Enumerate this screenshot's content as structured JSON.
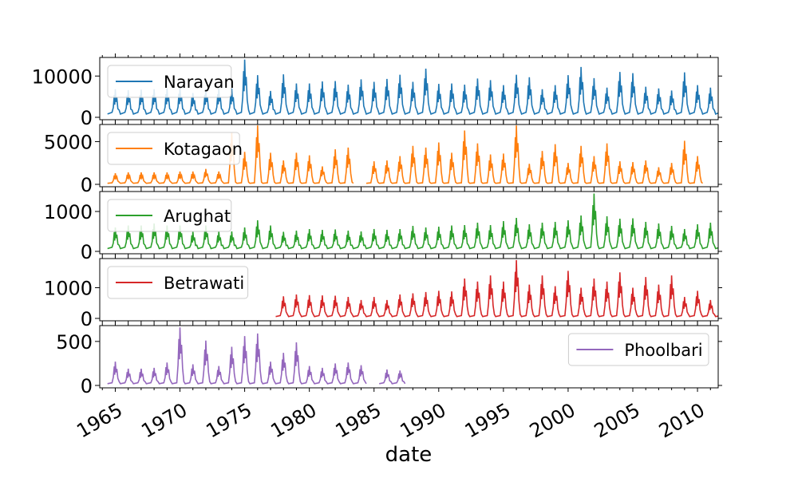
{
  "chart_data": [
    {
      "type": "line",
      "series": [
        {
          "name": "Narayan",
          "color": "#1f77b4",
          "baseline": 800,
          "peaks": [
            6800,
            6600,
            6700,
            6800,
            7000,
            7100,
            5900,
            6800,
            7000,
            7000,
            14000,
            10200,
            6400,
            10400,
            8200,
            8200,
            8700,
            8800,
            7900,
            9200,
            8600,
            9300,
            10300,
            8600,
            11800,
            8100,
            8200,
            7900,
            9400,
            9000,
            7800,
            10300,
            9700,
            6800,
            7800,
            10200,
            12200,
            9500,
            7200,
            11000,
            10700,
            7400,
            7000,
            6500,
            10900,
            7800,
            7200,
            7800
          ]
        }
      ],
      "yticks": [
        0,
        10000
      ],
      "ylim": [
        0,
        14500
      ],
      "legend_position": "upper left"
    },
    {
      "type": "line",
      "series": [
        {
          "name": "Kotagaon",
          "color": "#ff7f0e",
          "baseline": 120,
          "peaks": [
            1300,
            1400,
            1400,
            1400,
            1400,
            1500,
            1500,
            1800,
            1500,
            6000,
            3800,
            6900,
            3700,
            2800,
            3700,
            3400,
            2100,
            4100,
            4300,
            null,
            2700,
            2800,
            3300,
            4500,
            4300,
            4900,
            3700,
            6300,
            4800,
            3500,
            3600,
            6900,
            2400,
            3900,
            4700,
            2500,
            4500,
            3300,
            4800,
            2700,
            2600,
            2800,
            2000,
            2500,
            5100,
            3300
          ]
        }
      ],
      "yticks": [
        0,
        5000
      ],
      "ylim": [
        0,
        7000
      ],
      "legend_position": "upper left"
    },
    {
      "type": "line",
      "series": [
        {
          "name": "Arughat",
          "color": "#2ca02c",
          "baseline": 70,
          "peaks": [
            600,
            650,
            650,
            700,
            650,
            650,
            500,
            650,
            500,
            500,
            600,
            780,
            650,
            490,
            520,
            560,
            540,
            550,
            520,
            500,
            560,
            540,
            560,
            640,
            600,
            620,
            650,
            660,
            720,
            660,
            760,
            840,
            680,
            720,
            740,
            780,
            900,
            1450,
            880,
            820,
            830,
            740,
            700,
            640,
            560,
            680,
            720,
            700,
            690
          ]
        }
      ],
      "yticks": [
        0,
        1000
      ],
      "ylim": [
        0,
        1500
      ],
      "legend_position": "upper left"
    },
    {
      "type": "line",
      "series": [
        {
          "name": "Betrawati",
          "color": "#d62728",
          "baseline": 60,
          "peaks": [
            null,
            null,
            null,
            null,
            null,
            null,
            null,
            null,
            null,
            null,
            null,
            null,
            null,
            720,
            780,
            760,
            750,
            740,
            700,
            600,
            700,
            600,
            780,
            820,
            860,
            900,
            880,
            1300,
            1200,
            1400,
            1200,
            1900,
            1100,
            1400,
            1050,
            1550,
            1000,
            1300,
            1200,
            1500,
            1000,
            1350,
            1100,
            1400,
            700,
            900,
            600,
            750
          ]
        }
      ],
      "yticks": [
        0,
        1000
      ],
      "ylim": [
        0,
        1950
      ],
      "legend_position": "upper left"
    },
    {
      "type": "line",
      "series": [
        {
          "name": "Phoolbari",
          "color": "#9467bd",
          "baseline": 20,
          "peaks": [
            270,
            190,
            190,
            200,
            260,
            660,
            240,
            510,
            220,
            440,
            560,
            590,
            270,
            370,
            490,
            220,
            200,
            250,
            260,
            230,
            null,
            180,
            170
          ]
        }
      ],
      "yticks": [
        0,
        500
      ],
      "ylim": [
        0,
        680
      ],
      "legend_position": "upper right"
    }
  ],
  "x_axis": {
    "label": "date",
    "ticks": [
      "1965",
      "1970",
      "1975",
      "1980",
      "1985",
      "1990",
      "1995",
      "2000",
      "2005",
      "2010"
    ]
  }
}
